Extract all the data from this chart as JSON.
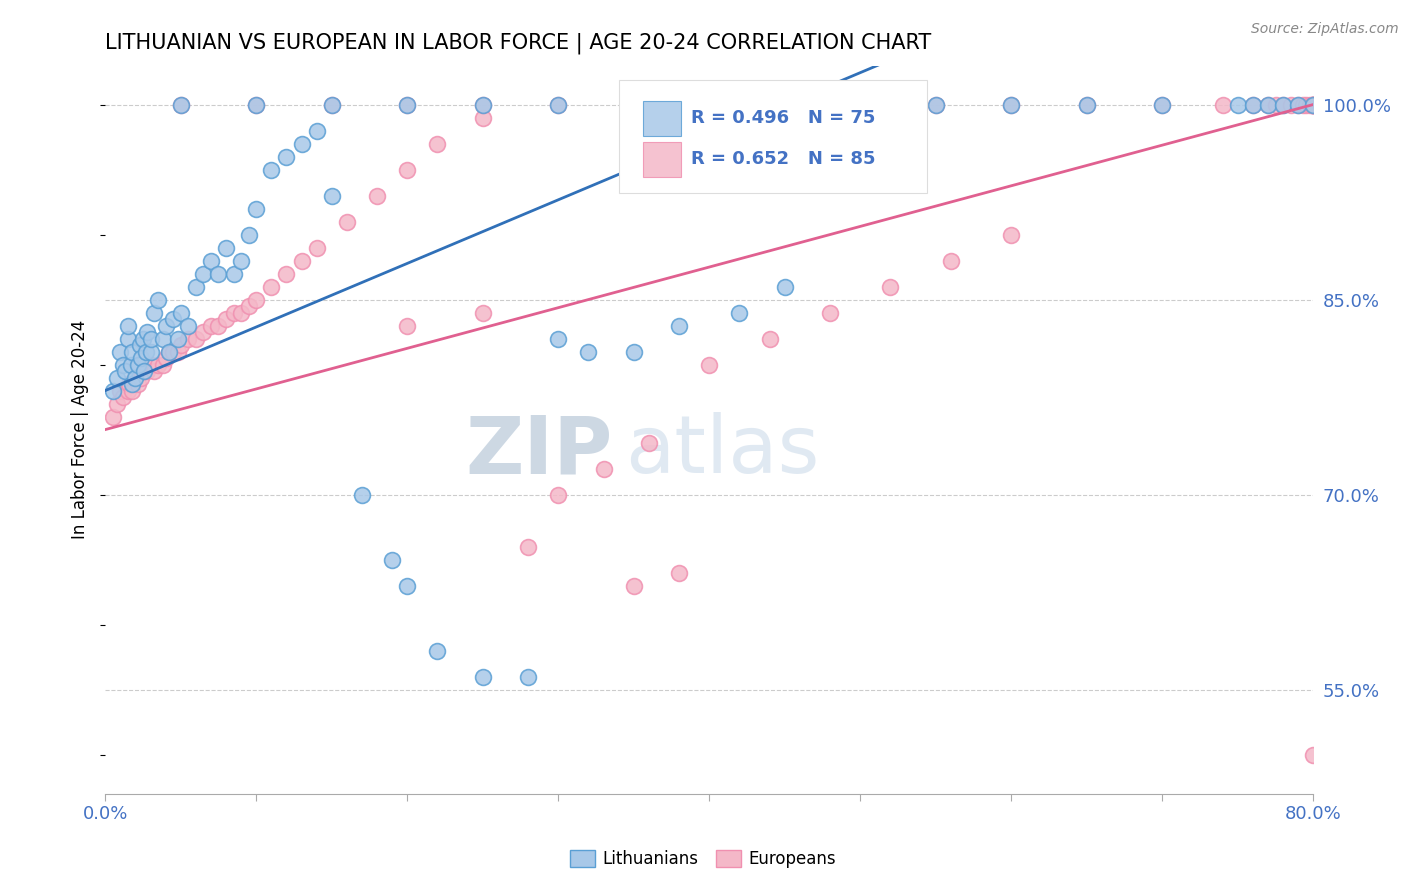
{
  "title": "LITHUANIAN VS EUROPEAN IN LABOR FORCE | AGE 20-24 CORRELATION CHART",
  "source_text": "Source: ZipAtlas.com",
  "ylabel": "In Labor Force | Age 20-24",
  "xlim": [
    0.0,
    0.8
  ],
  "ylim": [
    0.47,
    1.03
  ],
  "yticks_right": [
    0.55,
    0.7,
    0.85,
    1.0
  ],
  "yticklabels_right": [
    "55.0%",
    "70.0%",
    "85.0%",
    "100.0%"
  ],
  "blue_color": "#a8c8e8",
  "pink_color": "#f4b8c8",
  "blue_edge_color": "#5a9fd4",
  "pink_edge_color": "#f090b0",
  "blue_line_color": "#3070b8",
  "pink_line_color": "#e06090",
  "R_blue": 0.496,
  "N_blue": 75,
  "R_pink": 0.652,
  "N_pink": 85,
  "watermark_zip": "ZIP",
  "watermark_atlas": "atlas",
  "legend_labels": [
    "Lithuanians",
    "Europeans"
  ],
  "blue_scatter_x": [
    0.005,
    0.008,
    0.01,
    0.012,
    0.013,
    0.015,
    0.015,
    0.017,
    0.018,
    0.018,
    0.02,
    0.022,
    0.023,
    0.024,
    0.025,
    0.026,
    0.027,
    0.028,
    0.03,
    0.03,
    0.032,
    0.035,
    0.038,
    0.04,
    0.042,
    0.045,
    0.048,
    0.05,
    0.055,
    0.06,
    0.065,
    0.07,
    0.075,
    0.08,
    0.085,
    0.09,
    0.095,
    0.1,
    0.11,
    0.12,
    0.13,
    0.14,
    0.15,
    0.17,
    0.19,
    0.2,
    0.22,
    0.25,
    0.28,
    0.3,
    0.32,
    0.35,
    0.38,
    0.42,
    0.45,
    0.05,
    0.1,
    0.15,
    0.2,
    0.25,
    0.3,
    0.35,
    0.4,
    0.45,
    0.5,
    0.55,
    0.6,
    0.65,
    0.7,
    0.75,
    0.76,
    0.77,
    0.78,
    0.79,
    0.8
  ],
  "blue_scatter_y": [
    0.78,
    0.79,
    0.81,
    0.8,
    0.795,
    0.82,
    0.83,
    0.8,
    0.785,
    0.81,
    0.79,
    0.8,
    0.815,
    0.805,
    0.82,
    0.795,
    0.81,
    0.825,
    0.81,
    0.82,
    0.84,
    0.85,
    0.82,
    0.83,
    0.81,
    0.835,
    0.82,
    0.84,
    0.83,
    0.86,
    0.87,
    0.88,
    0.87,
    0.89,
    0.87,
    0.88,
    0.9,
    0.92,
    0.95,
    0.96,
    0.97,
    0.98,
    0.93,
    0.7,
    0.65,
    0.63,
    0.58,
    0.56,
    0.56,
    0.82,
    0.81,
    0.81,
    0.83,
    0.84,
    0.86,
    1.0,
    1.0,
    1.0,
    1.0,
    1.0,
    1.0,
    1.0,
    1.0,
    1.0,
    1.0,
    1.0,
    1.0,
    1.0,
    1.0,
    1.0,
    1.0,
    1.0,
    1.0,
    1.0,
    1.0
  ],
  "pink_scatter_x": [
    0.005,
    0.008,
    0.01,
    0.012,
    0.015,
    0.016,
    0.018,
    0.02,
    0.022,
    0.024,
    0.026,
    0.028,
    0.03,
    0.032,
    0.035,
    0.038,
    0.04,
    0.042,
    0.045,
    0.048,
    0.05,
    0.055,
    0.06,
    0.065,
    0.07,
    0.075,
    0.08,
    0.085,
    0.09,
    0.095,
    0.1,
    0.11,
    0.12,
    0.13,
    0.14,
    0.16,
    0.18,
    0.2,
    0.22,
    0.25,
    0.28,
    0.3,
    0.33,
    0.36,
    0.4,
    0.44,
    0.48,
    0.52,
    0.56,
    0.6,
    0.35,
    0.38,
    0.2,
    0.25,
    0.05,
    0.1,
    0.15,
    0.2,
    0.25,
    0.3,
    0.35,
    0.4,
    0.45,
    0.5,
    0.55,
    0.6,
    0.65,
    0.7,
    0.74,
    0.76,
    0.77,
    0.775,
    0.78,
    0.785,
    0.79,
    0.793,
    0.795,
    0.798,
    0.8,
    0.8,
    0.8,
    0.8,
    0.8,
    0.8,
    0.8
  ],
  "pink_scatter_y": [
    0.76,
    0.77,
    0.78,
    0.775,
    0.78,
    0.785,
    0.78,
    0.79,
    0.785,
    0.79,
    0.795,
    0.795,
    0.8,
    0.795,
    0.8,
    0.8,
    0.805,
    0.81,
    0.81,
    0.81,
    0.815,
    0.82,
    0.82,
    0.825,
    0.83,
    0.83,
    0.835,
    0.84,
    0.84,
    0.845,
    0.85,
    0.86,
    0.87,
    0.88,
    0.89,
    0.91,
    0.93,
    0.95,
    0.97,
    0.99,
    0.66,
    0.7,
    0.72,
    0.74,
    0.8,
    0.82,
    0.84,
    0.86,
    0.88,
    0.9,
    0.63,
    0.64,
    0.83,
    0.84,
    1.0,
    1.0,
    1.0,
    1.0,
    1.0,
    1.0,
    1.0,
    1.0,
    1.0,
    1.0,
    1.0,
    1.0,
    1.0,
    1.0,
    1.0,
    1.0,
    1.0,
    1.0,
    1.0,
    1.0,
    1.0,
    1.0,
    1.0,
    1.0,
    1.0,
    1.0,
    1.0,
    1.0,
    1.0,
    1.0,
    0.5
  ]
}
